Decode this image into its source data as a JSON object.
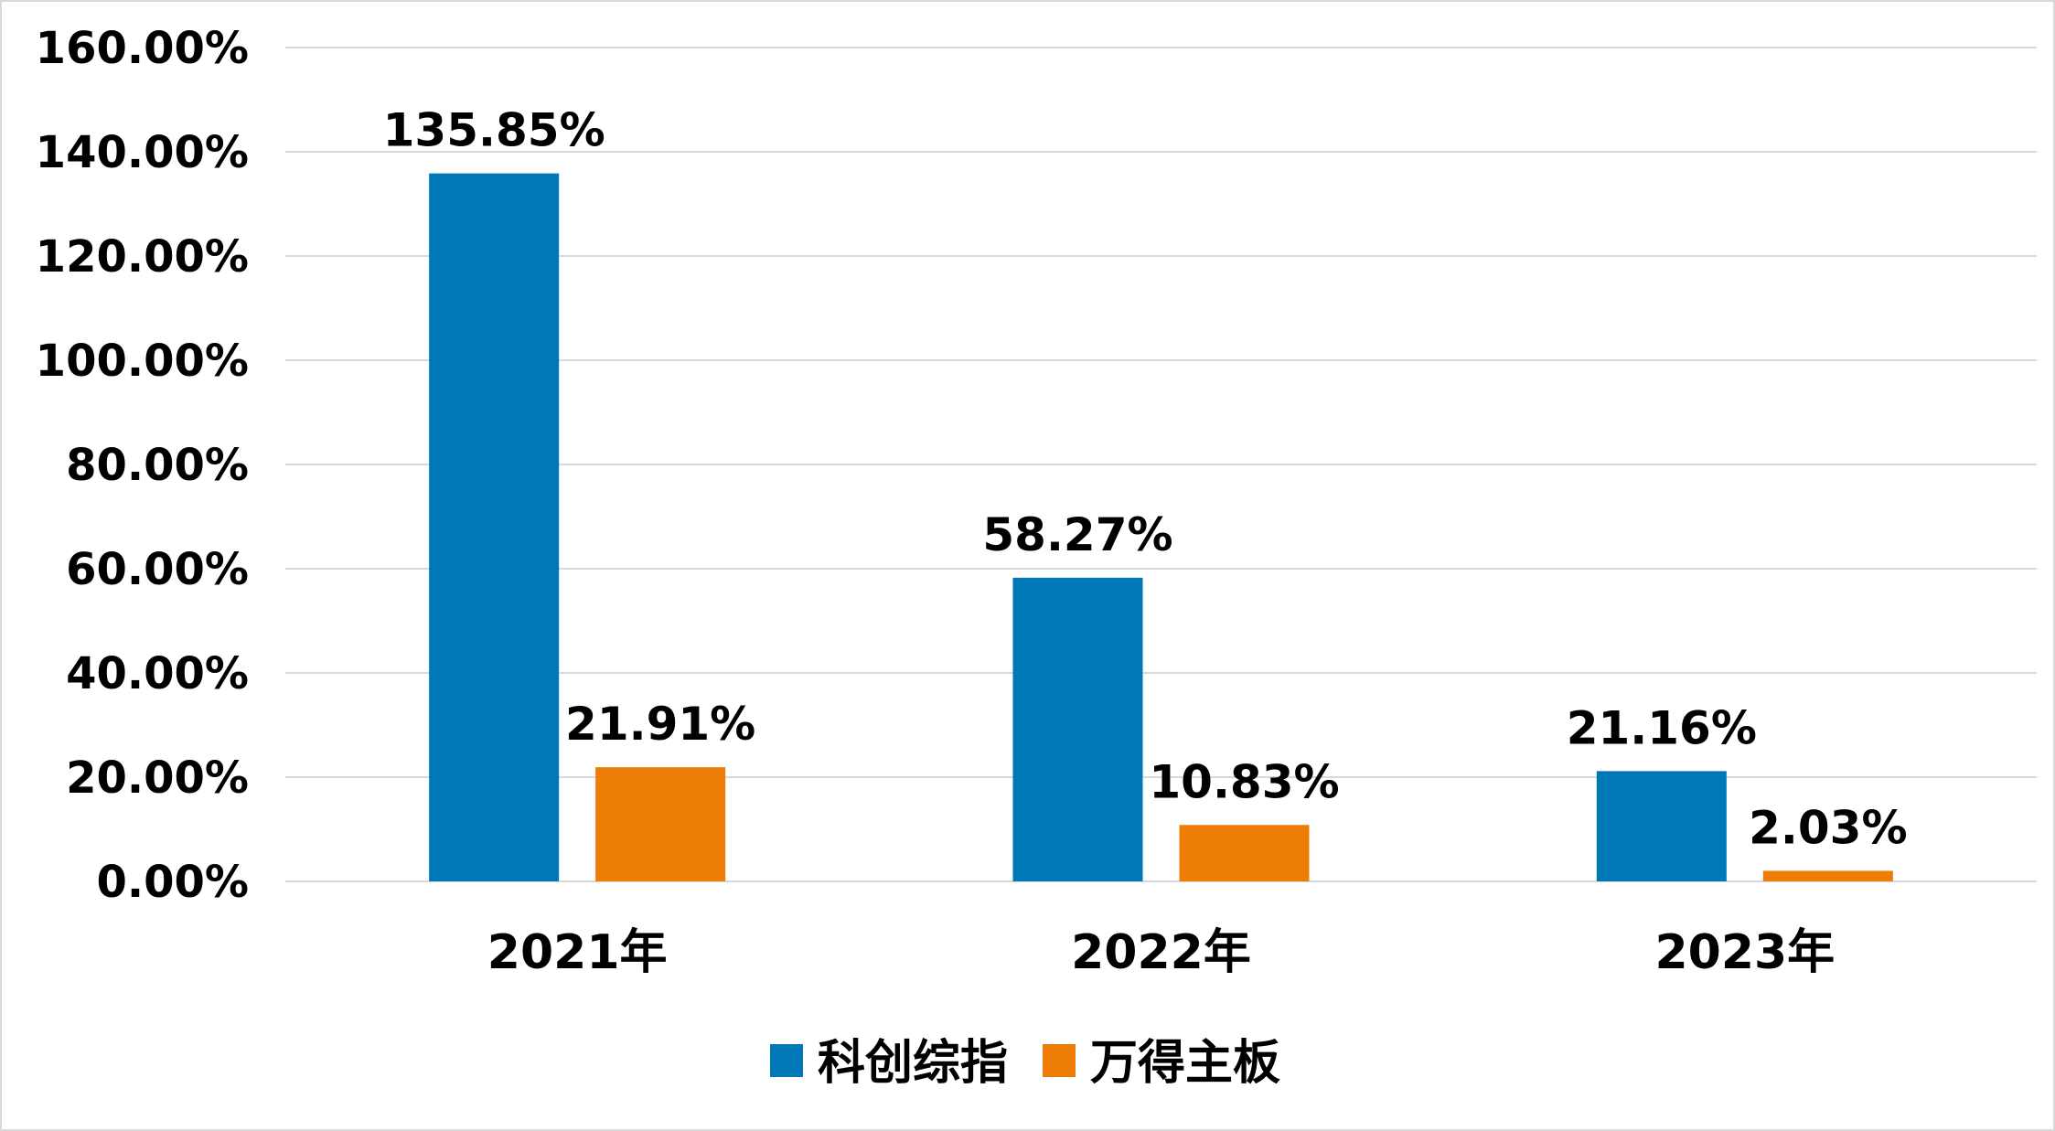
{
  "chart_data": {
    "type": "bar",
    "categories": [
      "2021年",
      "2022年",
      "2023年"
    ],
    "series": [
      {
        "name": "科创综指",
        "values": [
          135.85,
          58.27,
          21.16
        ],
        "labels": [
          "135.85%",
          "58.27%",
          "21.16%"
        ],
        "color": "#0077b6"
      },
      {
        "name": "万得主板",
        "values": [
          21.91,
          10.83,
          2.03
        ],
        "labels": [
          "21.91%",
          "10.83%",
          "2.03%"
        ],
        "color": "#ed7d06"
      }
    ],
    "y_ticks": [
      "0.00%",
      "20.00%",
      "40.00%",
      "60.00%",
      "80.00%",
      "100.00%",
      "120.00%",
      "140.00%",
      "160.00%"
    ],
    "ylim": [
      0,
      160
    ],
    "grid": true,
    "legend": "bottom-center",
    "gridline_color": "#d9d9d9"
  }
}
